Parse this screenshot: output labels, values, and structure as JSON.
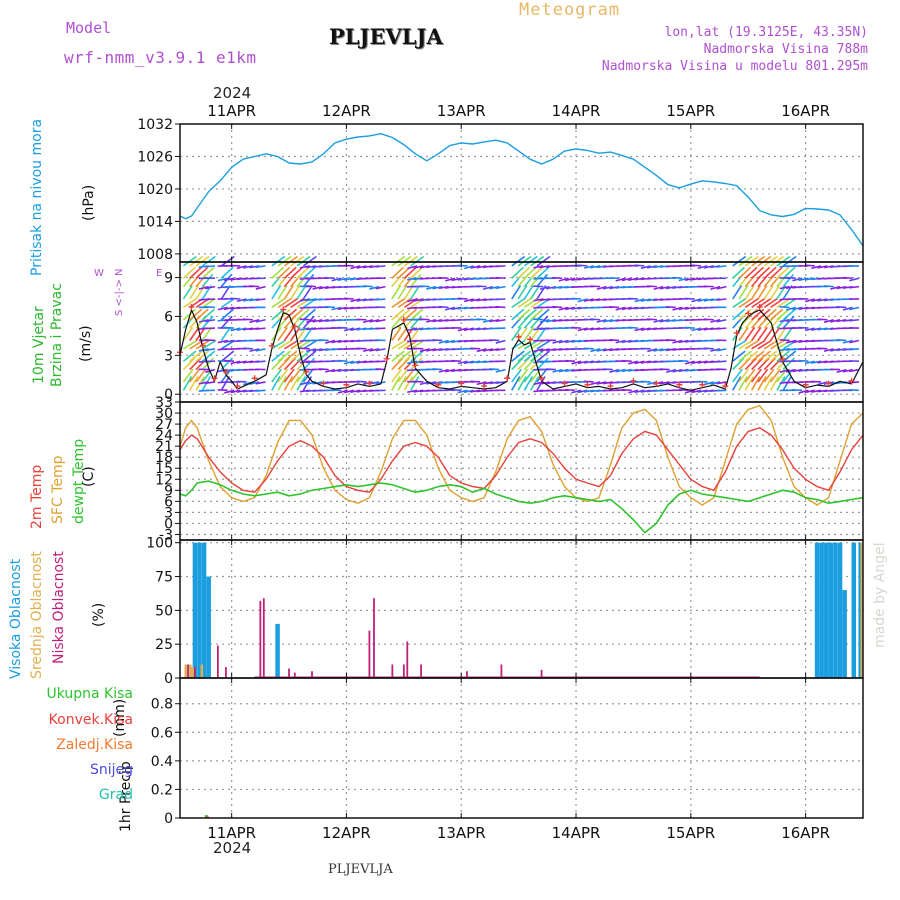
{
  "header": {
    "model_label": "Model",
    "model_name": "wrf-nmm_v3.9.1 e1km",
    "station": "PLJEVLJA",
    "product": "Meteogram",
    "lonlat": "lon,lat (19.3125E, 43.35N)",
    "elevation": "Nadmorska Visina 788m",
    "model_elevation": "Nadmorska Visina u modelu 801.295m",
    "year_top": "2024",
    "year_bottom": "2024",
    "footer_station": "PLJEVLJA",
    "credit": "made by Angel"
  },
  "colors": {
    "pressure": "#1a9ee0",
    "wind_label": "#2db82d",
    "temp2m": "#e8403a",
    "sfc_temp": "#e0a030",
    "dewpt": "#2ec42e",
    "high_cloud": "#1a9ee0",
    "mid_cloud": "#e0b050",
    "low_cloud": "#c0207a",
    "purple_text": "#b050d0",
    "total_precip": "#2ec42e",
    "conv_precip": "#e8403a",
    "frozen_precip": "#f07a30",
    "snow": "#4a4ae0",
    "hail": "#20c0b0"
  },
  "chart_data": [
    {
      "type": "line",
      "panel": "pressure",
      "ylabel_main": "Pritisak na nivou mora",
      "ylabel_unit": "(hPa)",
      "x_unit": "days from 10APR 00UTC",
      "xlim": [
        10.55,
        16.5
      ],
      "ylim": [
        1006.5,
        1032
      ],
      "yticks": [
        "1032",
        "1026",
        "1020",
        "1014",
        "1008"
      ],
      "series": [
        {
          "x": [
            10.55,
            10.6,
            10.65,
            10.7,
            10.8,
            10.9,
            11.0,
            11.1,
            11.2,
            11.3,
            11.4,
            11.5,
            11.6,
            11.7,
            11.8,
            11.9,
            12.0,
            12.1,
            12.2,
            12.3,
            12.4,
            12.5,
            12.6,
            12.7,
            12.8,
            12.9,
            13.0,
            13.1,
            13.2,
            13.3,
            13.4,
            13.5,
            13.6,
            13.7,
            13.8,
            13.9,
            14.0,
            14.1,
            14.2,
            14.3,
            14.4,
            14.5,
            14.6,
            14.7,
            14.8,
            14.9,
            15.0,
            15.1,
            15.2,
            15.3,
            15.4,
            15.5,
            15.6,
            15.7,
            15.8,
            15.9,
            16.0,
            16.1,
            16.2,
            16.3,
            16.4,
            16.5
          ],
          "y": [
            1015,
            1014.5,
            1015,
            1016.5,
            1019.5,
            1021.5,
            1024,
            1025.5,
            1026,
            1026.5,
            1026,
            1024.8,
            1024.6,
            1025,
            1026.5,
            1028.5,
            1029.2,
            1029.6,
            1029.8,
            1030.2,
            1029.5,
            1028.2,
            1026.5,
            1025.2,
            1026.5,
            1028,
            1028.5,
            1028.3,
            1028.7,
            1029,
            1028.5,
            1027,
            1025.5,
            1024.6,
            1025.5,
            1027,
            1027.4,
            1027.1,
            1026.6,
            1026.8,
            1026.2,
            1025.5,
            1024,
            1022.5,
            1020.8,
            1020.2,
            1020.9,
            1021.5,
            1021.3,
            1021,
            1020.6,
            1018.5,
            1016,
            1015.2,
            1014.9,
            1015.3,
            1016.4,
            1016.3,
            1016.1,
            1015.2,
            1012.5,
            1009.5
          ]
        }
      ]
    },
    {
      "type": "line",
      "panel": "wind",
      "ylabel_main": "10m Vjetar",
      "ylabel_sub": "Brzina i Pravac",
      "ylabel_unit": "(m/s)",
      "legend_compass": [
        "N",
        "<-|->",
        "S",
        "W",
        "E"
      ],
      "xlim": [
        10.55,
        16.5
      ],
      "ylim": [
        -0.6,
        10.2
      ],
      "yticks": [
        "9",
        "6",
        "3",
        "0"
      ],
      "series": [
        {
          "name": "speed",
          "x": [
            10.55,
            10.6,
            10.65,
            10.7,
            10.75,
            10.8,
            10.85,
            10.9,
            10.95,
            11.0,
            11.05,
            11.1,
            11.2,
            11.3,
            11.35,
            11.4,
            11.45,
            11.5,
            11.55,
            11.6,
            11.65,
            11.7,
            11.8,
            11.9,
            12.0,
            12.1,
            12.2,
            12.3,
            12.35,
            12.4,
            12.5,
            12.55,
            12.6,
            12.7,
            12.8,
            12.9,
            13.0,
            13.1,
            13.2,
            13.3,
            13.4,
            13.45,
            13.5,
            13.55,
            13.6,
            13.65,
            13.7,
            13.8,
            13.9,
            14.0,
            14.1,
            14.2,
            14.3,
            14.4,
            14.5,
            14.6,
            14.7,
            14.8,
            14.9,
            15.0,
            15.1,
            15.2,
            15.3,
            15.35,
            15.4,
            15.45,
            15.5,
            15.55,
            15.6,
            15.7,
            15.8,
            15.9,
            16.0,
            16.1,
            16.2,
            16.3,
            16.4,
            16.5
          ],
          "y": [
            3.0,
            5.0,
            6.5,
            5.5,
            3.5,
            2.0,
            1.0,
            2.5,
            1.5,
            1.0,
            0.4,
            0.6,
            1.0,
            1.5,
            3.5,
            5.0,
            6.3,
            6.1,
            5.0,
            3.0,
            1.5,
            1.0,
            0.6,
            0.4,
            0.5,
            0.8,
            0.6,
            0.8,
            2.5,
            5.0,
            5.5,
            4.5,
            2.0,
            1.0,
            0.5,
            0.4,
            0.6,
            0.5,
            0.4,
            0.5,
            1.0,
            3.5,
            4.2,
            3.8,
            4.0,
            2.5,
            1.0,
            0.4,
            0.6,
            0.8,
            0.5,
            0.6,
            0.4,
            0.5,
            0.8,
            0.5,
            0.6,
            0.8,
            0.5,
            0.3,
            0.5,
            0.7,
            0.4,
            2.0,
            4.5,
            5.5,
            6.0,
            6.3,
            6.5,
            5.5,
            2.5,
            1.0,
            0.5,
            0.7,
            0.6,
            1.0,
            0.8,
            2.5
          ]
        }
      ]
    },
    {
      "type": "line",
      "panel": "temperature",
      "ylabel_main": "2m Temp",
      "ylabel_sub": "SFC Temp",
      "ylabel_sub2": "dewpt Temp",
      "ylabel_unit": "(C)",
      "xlim": [
        10.55,
        16.5
      ],
      "ylim": [
        -4.5,
        33
      ],
      "yticks": [
        "33",
        "30",
        "27",
        "24",
        "21",
        "18",
        "15",
        "12",
        "9",
        "6",
        "3",
        "0",
        "-3"
      ],
      "series": [
        {
          "name": "2m Temp",
          "x": [
            10.55,
            10.6,
            10.65,
            10.7,
            10.8,
            10.9,
            11.0,
            11.1,
            11.2,
            11.3,
            11.4,
            11.5,
            11.6,
            11.7,
            11.8,
            11.9,
            12.0,
            12.1,
            12.2,
            12.3,
            12.4,
            12.5,
            12.6,
            12.7,
            12.8,
            12.9,
            13.0,
            13.1,
            13.2,
            13.3,
            13.4,
            13.5,
            13.6,
            13.7,
            13.8,
            13.9,
            14.0,
            14.1,
            14.2,
            14.3,
            14.4,
            14.5,
            14.6,
            14.7,
            14.8,
            14.9,
            15.0,
            15.1,
            15.2,
            15.3,
            15.4,
            15.5,
            15.6,
            15.7,
            15.8,
            15.9,
            16.0,
            16.1,
            16.2,
            16.3,
            16.4,
            16.5
          ],
          "y": [
            20,
            22.5,
            24,
            23,
            18,
            14,
            11,
            9,
            8.5,
            12,
            17,
            21,
            22.5,
            21,
            18,
            13,
            10,
            9,
            8.5,
            12,
            17,
            21,
            22,
            21,
            18,
            13,
            11,
            10,
            9.5,
            13,
            18,
            22,
            23,
            22,
            19,
            15,
            12,
            11,
            10,
            13,
            19,
            23,
            25,
            24,
            20,
            16,
            12,
            10,
            9,
            14,
            21,
            25,
            26,
            24,
            20,
            15,
            12,
            10,
            9,
            14,
            20,
            24
          ]
        },
        {
          "name": "SFC Temp",
          "x": [
            10.55,
            10.6,
            10.65,
            10.7,
            10.8,
            10.9,
            11.0,
            11.1,
            11.2,
            11.3,
            11.4,
            11.5,
            11.6,
            11.7,
            11.8,
            11.9,
            12.0,
            12.1,
            12.2,
            12.3,
            12.4,
            12.5,
            12.6,
            12.7,
            12.8,
            12.9,
            13.0,
            13.1,
            13.2,
            13.3,
            13.4,
            13.5,
            13.6,
            13.7,
            13.8,
            13.9,
            14.0,
            14.1,
            14.2,
            14.3,
            14.4,
            14.5,
            14.6,
            14.7,
            14.8,
            14.9,
            15.0,
            15.1,
            15.2,
            15.3,
            15.4,
            15.5,
            15.6,
            15.7,
            15.8,
            15.9,
            16.0,
            16.1,
            16.2,
            16.3,
            16.4,
            16.5
          ],
          "y": [
            21,
            26,
            28,
            26,
            17,
            10,
            7,
            6,
            7,
            13,
            22,
            28,
            28,
            24,
            15,
            9,
            6.5,
            5.5,
            7,
            14,
            23,
            28,
            28,
            24,
            15,
            9,
            7,
            6,
            7,
            14,
            23,
            28,
            29,
            25,
            16,
            10,
            7,
            6,
            7,
            16,
            26,
            30,
            31,
            28,
            18,
            10,
            7,
            5,
            7,
            17,
            27,
            31,
            32,
            28,
            18,
            10,
            7,
            5,
            7,
            17,
            27,
            30
          ]
        },
        {
          "name": "dewpt Temp",
          "x": [
            10.55,
            10.6,
            10.65,
            10.7,
            10.8,
            10.9,
            11.0,
            11.1,
            11.2,
            11.3,
            11.4,
            11.5,
            11.6,
            11.7,
            11.8,
            11.9,
            12.0,
            12.1,
            12.2,
            12.3,
            12.4,
            12.5,
            12.6,
            12.7,
            12.8,
            12.9,
            13.0,
            13.1,
            13.2,
            13.3,
            13.4,
            13.5,
            13.6,
            13.7,
            13.8,
            13.9,
            14.0,
            14.1,
            14.2,
            14.3,
            14.4,
            14.5,
            14.6,
            14.7,
            14.8,
            14.9,
            15.0,
            15.1,
            15.2,
            15.3,
            15.4,
            15.5,
            15.6,
            15.7,
            15.8,
            15.9,
            16.0,
            16.1,
            16.2,
            16.3,
            16.4,
            16.5
          ],
          "y": [
            8,
            7.5,
            9,
            11,
            11.5,
            10.5,
            9,
            8,
            7.5,
            8,
            8.5,
            7.5,
            8,
            9,
            9.5,
            10,
            10.5,
            10,
            10.5,
            11,
            10.5,
            9.5,
            8.5,
            9,
            10,
            10.5,
            10,
            8.5,
            9.5,
            8,
            7,
            6,
            5.5,
            6,
            7,
            7.5,
            7,
            6.5,
            6,
            6.5,
            4,
            1,
            -2.5,
            0,
            5,
            8,
            9,
            8,
            7.5,
            7,
            6.5,
            6,
            7,
            8,
            9,
            8.5,
            7,
            6.5,
            5.5,
            6,
            6.5,
            7
          ]
        }
      ]
    },
    {
      "type": "bar",
      "panel": "clouds",
      "ylabel_main": "Visoka Oblacnost",
      "ylabel_sub": "Srednja Oblacnost",
      "ylabel_sub2": "Niska Oblacnost",
      "ylabel_unit": "(%)",
      "xlim": [
        10.55,
        16.5
      ],
      "ylim": [
        0,
        102
      ],
      "yticks": [
        "100",
        "75",
        "50",
        "25",
        "0"
      ],
      "series": [
        {
          "name": "Visoka Oblacnost",
          "x": [
            10.68,
            10.72,
            10.76,
            10.8,
            11.4,
            16.1,
            16.14,
            16.18,
            16.22,
            16.26,
            16.3,
            16.34,
            16.42,
            16.48
          ],
          "y": [
            100,
            100,
            100,
            75,
            40,
            100,
            100,
            100,
            100,
            100,
            100,
            65,
            100,
            100
          ]
        },
        {
          "name": "Srednja Oblacnost",
          "x": [
            10.6,
            10.64,
            10.66,
            10.74,
            16.49
          ],
          "y": [
            10,
            10,
            8,
            10,
            100
          ]
        },
        {
          "name": "Niska Oblacnost",
          "x": [
            10.62,
            10.68,
            10.88,
            10.95,
            11.25,
            11.28,
            11.5,
            11.55,
            11.7,
            12.2,
            12.24,
            12.4,
            12.5,
            12.53,
            12.65,
            13.05,
            13.35,
            13.7
          ],
          "y": [
            10,
            8,
            24,
            8,
            57,
            59,
            7,
            4,
            5,
            35,
            59,
            10,
            10,
            27,
            10,
            5,
            10,
            6
          ]
        }
      ]
    },
    {
      "type": "bar",
      "panel": "precipitation",
      "ylabel_main": "1hr Precip",
      "ylabel_unit": "(mm)",
      "xlim": [
        10.55,
        16.5
      ],
      "ylim": [
        0,
        0.98
      ],
      "yticks": [
        "0.8",
        "0.6",
        "0.4",
        "0.2",
        "0"
      ],
      "legend": [
        "Ukupna Kisa",
        "Konvek.Kisa",
        "Zaledj.Kisa",
        "Snijeg",
        "Grad"
      ],
      "series": [
        {
          "name": "Ukupna Kisa",
          "x": [
            10.78
          ],
          "y": [
            0.02
          ]
        },
        {
          "name": "Konvek.Kisa",
          "x": [
            10.79
          ],
          "y": [
            0.01
          ]
        }
      ]
    }
  ],
  "axis": {
    "day_labels": [
      "11APR",
      "12APR",
      "13APR",
      "14APR",
      "15APR",
      "16APR"
    ]
  }
}
